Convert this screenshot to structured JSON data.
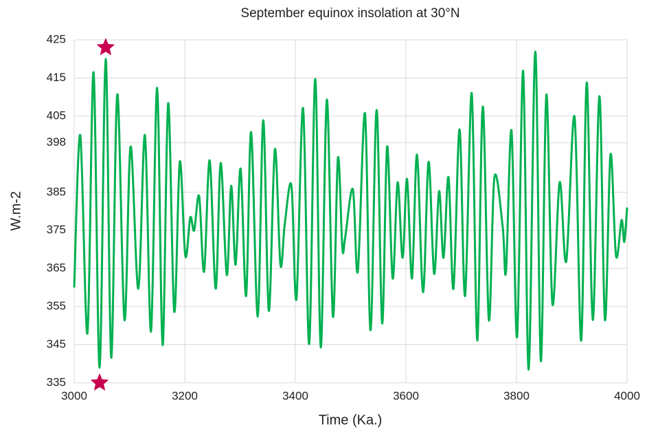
{
  "chart_data": {
    "type": "line",
    "title": "September equinox insolation at 30°N",
    "x_label": "Time (Ka.)",
    "y_label": "W.m-2",
    "xlim": [
      3000,
      4000
    ],
    "xticks": [
      3000,
      3200,
      3400,
      3600,
      3800,
      4000
    ],
    "ylim": [
      335,
      425
    ],
    "yticks": [
      335,
      345,
      355,
      365,
      375,
      385,
      398,
      405,
      415,
      425
    ],
    "grid": true,
    "series": [
      {
        "color": "#00b050",
        "x": [
          3000,
          3011,
          3024,
          3035,
          3046,
          3057,
          3067,
          3078,
          3091,
          3102,
          3116,
          3128,
          3139,
          3150,
          3160,
          3170,
          3181,
          3191,
          3201,
          3210,
          3217,
          3226,
          3235,
          3245,
          3256,
          3265,
          3276,
          3284,
          3292,
          3301,
          3311,
          3320,
          3332,
          3342,
          3352,
          3363,
          3373,
          3381,
          3393,
          3402,
          3414,
          3425,
          3436,
          3446,
          3457,
          3468,
          3477,
          3485,
          3490,
          3504,
          3513,
          3526,
          3536,
          3547,
          3557,
          3566,
          3576,
          3585,
          3594,
          3602,
          3611,
          3620,
          3631,
          3641,
          3651,
          3660,
          3668,
          3677,
          3686,
          3697,
          3707,
          3719,
          3729,
          3739,
          3750,
          3760,
          3775,
          3781,
          3791,
          3801,
          3812,
          3822,
          3834,
          3844,
          3854,
          3865,
          3878,
          3890,
          3905,
          3917,
          3927,
          3938,
          3950,
          3960,
          3970,
          3980,
          3990,
          3995,
          4000
        ],
        "values": [
          360,
          400,
          348,
          416.5,
          339,
          420,
          341.6,
          410.7,
          351.5,
          397,
          359.7,
          400,
          348.5,
          412.4,
          344.9,
          408.4,
          353.7,
          393,
          368.3,
          378.4,
          375,
          384,
          364.2,
          393.4,
          359.7,
          392.7,
          363.3,
          386.7,
          366,
          391.2,
          357.8,
          400.8,
          352.4,
          403.9,
          353.9,
          396.3,
          366,
          376.8,
          386.7,
          357,
          407.1,
          345.2,
          414.7,
          344.3,
          409.3,
          352.4,
          394,
          370.5,
          373,
          385.8,
          364.2,
          405.7,
          348.8,
          406.6,
          350.6,
          397,
          362.4,
          387.6,
          367.8,
          388.5,
          362.4,
          394.9,
          358.8,
          393,
          363.6,
          385.3,
          367.8,
          389,
          359.7,
          401.5,
          357.8,
          411,
          346.1,
          407.5,
          351.5,
          388.9,
          376,
          364.2,
          401.2,
          347,
          416.9,
          338.5,
          421.9,
          340.7,
          410.6,
          355.7,
          387.6,
          366.9,
          404.8,
          346.1,
          413.8,
          351.5,
          410.2,
          351.5,
          394.9,
          368.3,
          377.7,
          372,
          381
        ]
      }
    ],
    "markers": {
      "color": "#c8004f",
      "x": [
        3057,
        3046
      ],
      "y": [
        423,
        335
      ]
    }
  }
}
